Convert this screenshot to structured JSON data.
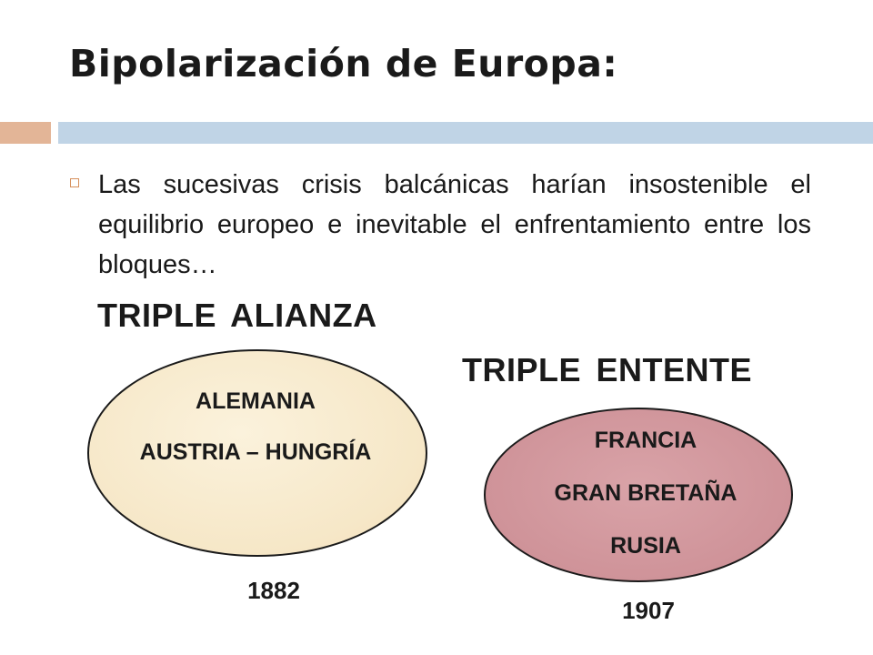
{
  "slide": {
    "title": "Bipolarización de Europa:",
    "bullet": "Las sucesivas crisis balcánicas harían insostenible el equilibrio europeo e inevitable el enfrentamiento entre los bloques…"
  },
  "alliances": {
    "triple_alianza": {
      "heading": "TRIPLE ALIANZA",
      "members": [
        "ALEMANIA",
        "AUSTRIA – HUNGRÍA"
      ],
      "year": "1882",
      "color": "#f6e7c7"
    },
    "triple_entente": {
      "heading": "TRIPLE ENTENTE",
      "members": [
        "FRANCIA",
        "GRAN BRETAÑA",
        "RUSIA"
      ],
      "year": "1907",
      "color": "#cf9399"
    }
  },
  "colors": {
    "accent_bar": "#e3b597",
    "title_bar": "#c0d4e6",
    "bullet_outline": "#d6905c"
  }
}
